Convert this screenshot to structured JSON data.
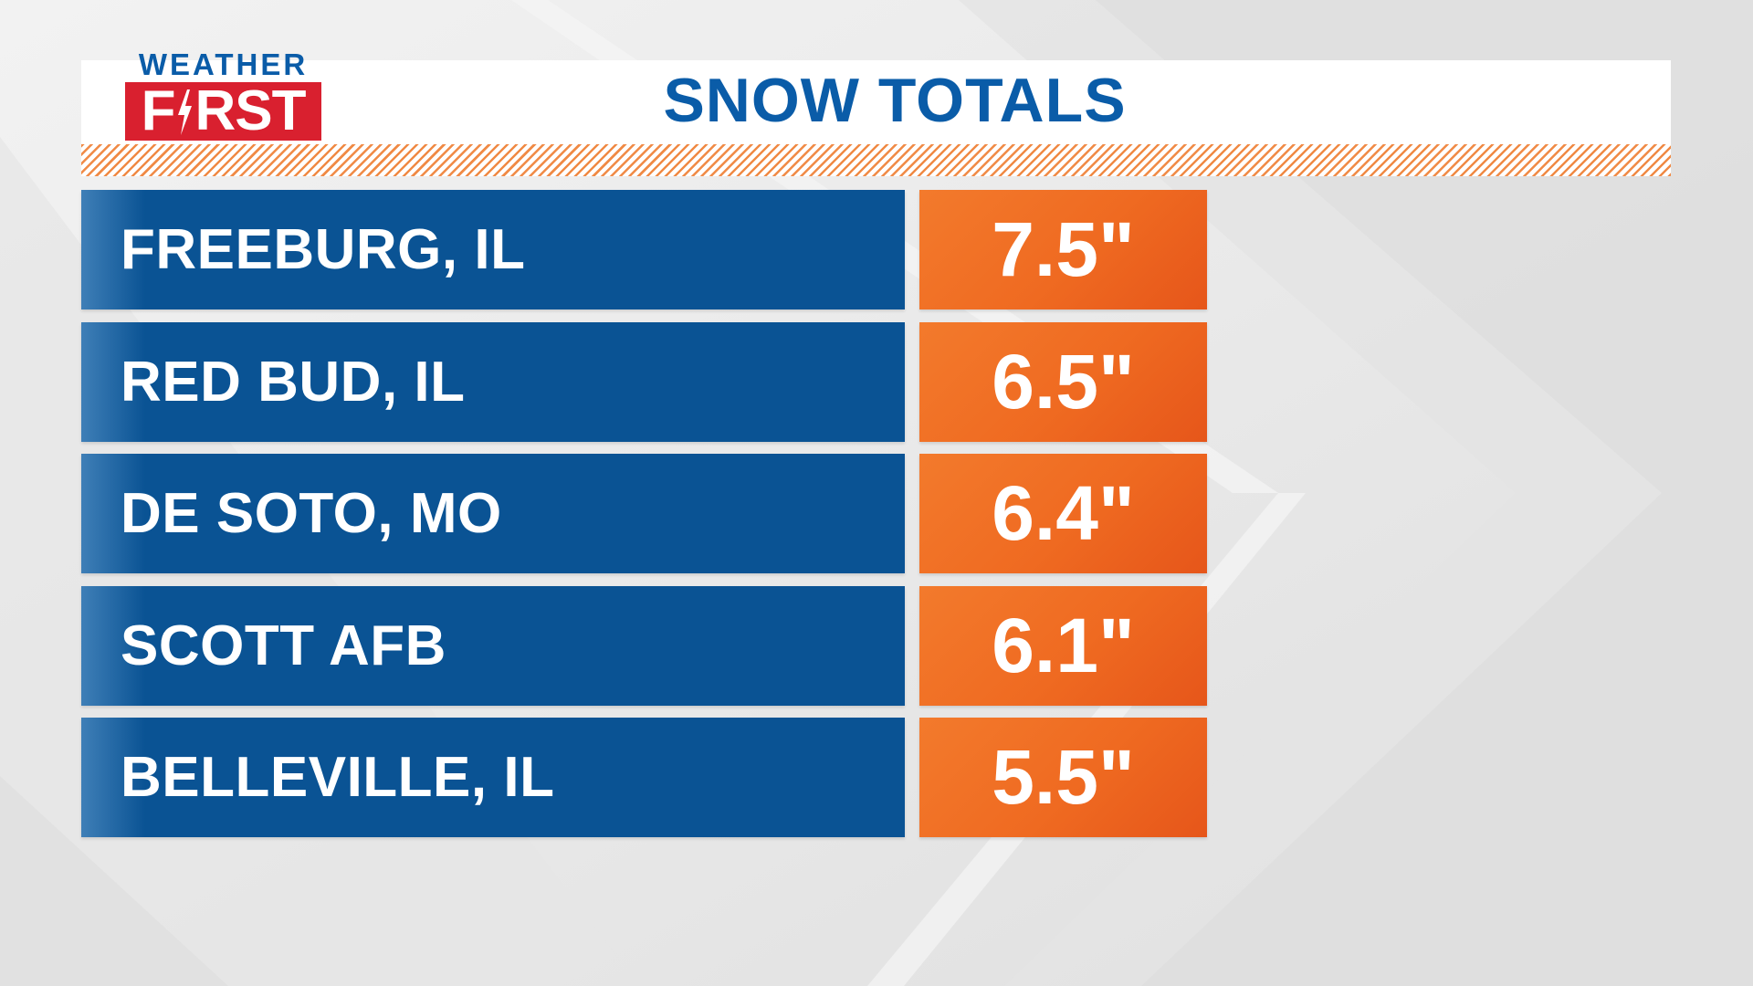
{
  "logo": {
    "top_text": "WEATHER",
    "bottom_text_left": "F",
    "bottom_text_right": "RST",
    "colors": {
      "blue": "#0a5ca8",
      "red": "#d9202f"
    }
  },
  "title": "SNOW TOTALS",
  "colors": {
    "location_bar": "#0a5394",
    "value_box": "#ef6a21",
    "hatch": "#f08a45",
    "title": "#0a5ca8"
  },
  "rows": [
    {
      "location": "FREEBURG, IL",
      "amount": "7.5\""
    },
    {
      "location": "RED BUD, IL",
      "amount": "6.5\""
    },
    {
      "location": "DE SOTO, MO",
      "amount": "6.4\""
    },
    {
      "location": "SCOTT AFB",
      "amount": "6.1\""
    },
    {
      "location": "BELLEVILLE, IL",
      "amount": "5.5\""
    }
  ]
}
